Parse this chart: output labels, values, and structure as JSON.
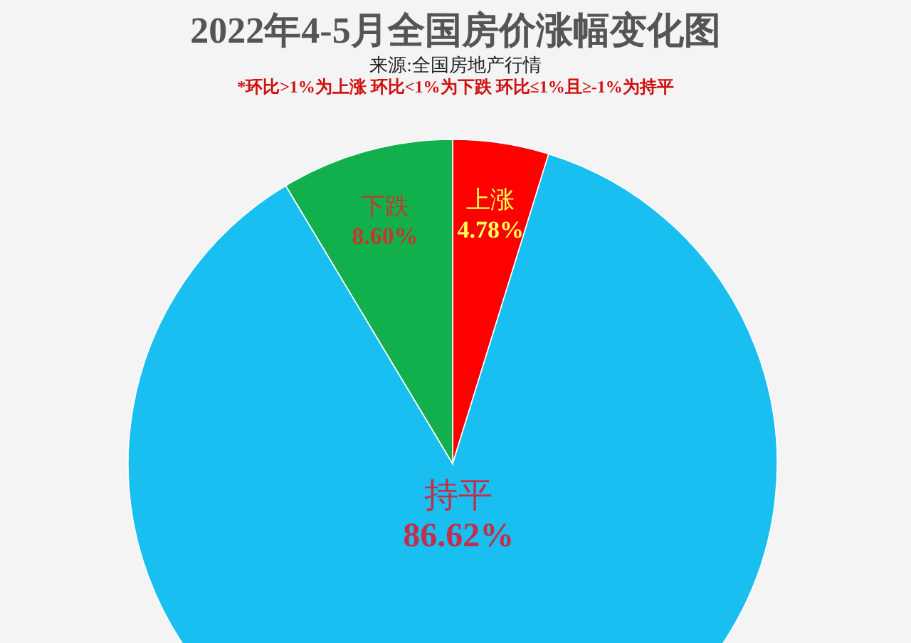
{
  "chart_data": {
    "type": "pie",
    "title": "2022年4-5月全国房价涨幅变化图",
    "subtitle": "来源:全国房地产行情",
    "annotations": [
      "*环比>1%为上涨 环比<1%为下跌 环比≤1%且≥-1%为持平"
    ],
    "categories": [
      "上涨",
      "持平",
      "下跌"
    ],
    "values": [
      4.78,
      86.62,
      8.6
    ],
    "value_labels": [
      "4.78%",
      "86.62%",
      "8.60%"
    ],
    "colors": [
      "#ff0000",
      "#19bff0",
      "#12b04c"
    ],
    "legend": false
  }
}
